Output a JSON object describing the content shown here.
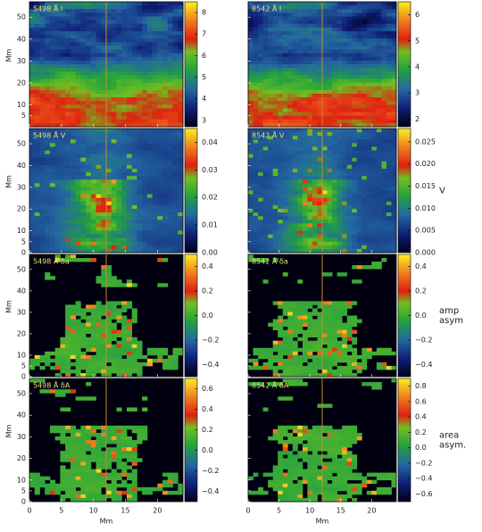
{
  "chart_data": [
    {
      "type": "heatmap",
      "label": "5498 Å I",
      "field": "intensity",
      "xlim": [
        0,
        24
      ],
      "xticks": [
        0,
        5,
        10,
        15,
        20
      ],
      "ylim": [
        0,
        57
      ],
      "yticks": [
        5,
        10,
        20,
        30,
        40,
        50
      ],
      "ylabel": "Mm",
      "marker_x": 12,
      "clim": [
        2.7,
        8.5
      ],
      "cticks": [
        3,
        4,
        5,
        6,
        7,
        8
      ]
    },
    {
      "type": "heatmap",
      "label": "8542 Å I",
      "field": "intensity",
      "xlim": [
        0,
        24
      ],
      "xticks": [
        0,
        5,
        10,
        15,
        20
      ],
      "ylim": [
        0,
        57
      ],
      "yticks": [
        5,
        10,
        20,
        30,
        40,
        50
      ],
      "marker_x": 12,
      "clim": [
        1.7,
        6.5
      ],
      "cticks": [
        2,
        3,
        4,
        5,
        6
      ]
    },
    {
      "type": "heatmap",
      "label": "5498 Å V",
      "field": "stokes",
      "xlim": [
        0,
        24
      ],
      "xticks": [
        0,
        5,
        10,
        15,
        20
      ],
      "ylim": [
        0,
        57
      ],
      "yticks": [
        0,
        5,
        10,
        20,
        30,
        40,
        50
      ],
      "ylabel": "Mm",
      "marker_x": 12,
      "clim": [
        0,
        0.045
      ],
      "cticks": [
        {
          "value": 0,
          "label": "0.00"
        },
        {
          "value": 0.01,
          "label": "0.01"
        },
        {
          "value": 0.02,
          "label": "0.02"
        },
        {
          "value": 0.03,
          "label": "0.03"
        },
        {
          "value": 0.04,
          "label": "0.04"
        }
      ]
    },
    {
      "type": "heatmap",
      "label": "8542 Å V",
      "field": "stokes",
      "xlim": [
        0,
        24
      ],
      "xticks": [
        0,
        5,
        10,
        15,
        20
      ],
      "ylim": [
        0,
        57
      ],
      "yticks": [
        0,
        5,
        10,
        20,
        30,
        40,
        50
      ],
      "marker_x": 12,
      "clim": [
        0,
        0.028
      ],
      "cticks": [
        {
          "value": 0,
          "label": "0.000"
        },
        {
          "value": 0.005,
          "label": "0.005"
        },
        {
          "value": 0.01,
          "label": "0.010"
        },
        {
          "value": 0.015,
          "label": "0.015"
        },
        {
          "value": 0.02,
          "label": "0.020"
        },
        {
          "value": 0.025,
          "label": "0.025"
        }
      ],
      "clabel": [
        "V"
      ]
    },
    {
      "type": "heatmap",
      "label": "5498 Å δa",
      "field": "asym",
      "xlim": [
        0,
        24
      ],
      "xticks": [
        0,
        5,
        10,
        15,
        20
      ],
      "ylim": [
        0,
        57
      ],
      "yticks": [
        0,
        5,
        10,
        20,
        30,
        40,
        50
      ],
      "ylabel": "Mm",
      "marker_x": 12,
      "clim": [
        -0.5,
        0.5
      ],
      "cticks": [
        {
          "value": -0.4,
          "label": "−0.4"
        },
        {
          "value": -0.2,
          "label": "−0.2"
        },
        {
          "value": 0,
          "label": "0.0"
        },
        0.2,
        0.4
      ]
    },
    {
      "type": "heatmap",
      "label": "8542 Å δa",
      "field": "asym",
      "xlim": [
        0,
        24
      ],
      "xticks": [
        0,
        5,
        10,
        15,
        20
      ],
      "ylim": [
        0,
        57
      ],
      "yticks": [
        0,
        5,
        10,
        20,
        30,
        40,
        50
      ],
      "marker_x": 12,
      "clim": [
        -0.5,
        0.5
      ],
      "cticks": [
        {
          "value": -0.4,
          "label": "−0.4"
        },
        {
          "value": -0.2,
          "label": "−0.2"
        },
        {
          "value": 0,
          "label": "0.0"
        },
        0.2,
        0.4
      ],
      "clabel": [
        "amp",
        "asym"
      ]
    },
    {
      "type": "heatmap",
      "label": "5498 Å δA",
      "field": "asym",
      "xlim": [
        0,
        24
      ],
      "xticks": [
        0,
        5,
        10,
        15,
        20
      ],
      "ylim": [
        0,
        57
      ],
      "yticks": [
        0,
        5,
        10,
        20,
        30,
        40,
        50
      ],
      "ylabel": "Mm",
      "xlabel": "Mm",
      "marker_x": 12,
      "clim": [
        -0.5,
        0.7
      ],
      "cticks": [
        {
          "value": -0.4,
          "label": "−0.4"
        },
        {
          "value": -0.2,
          "label": "−0.2"
        },
        {
          "value": 0,
          "label": "0.0"
        },
        0.2,
        0.4,
        0.6
      ]
    },
    {
      "type": "heatmap",
      "label": "8542 Å δA",
      "field": "asym",
      "xlim": [
        0,
        24
      ],
      "xticks": [
        0,
        5,
        10,
        15,
        20
      ],
      "ylim": [
        0,
        57
      ],
      "yticks": [
        0,
        5,
        10,
        20,
        30,
        40,
        50
      ],
      "xlabel": "Mm",
      "marker_x": 12,
      "clim": [
        -0.7,
        0.9
      ],
      "cticks": [
        {
          "value": -0.6,
          "label": "−0.6"
        },
        {
          "value": -0.4,
          "label": "−0.4"
        },
        {
          "value": -0.2,
          "label": "−0.2"
        },
        {
          "value": 0,
          "label": "0.0"
        },
        0.2,
        0.4,
        0.6,
        0.8
      ],
      "clabel": [
        "area",
        "asym."
      ]
    }
  ]
}
